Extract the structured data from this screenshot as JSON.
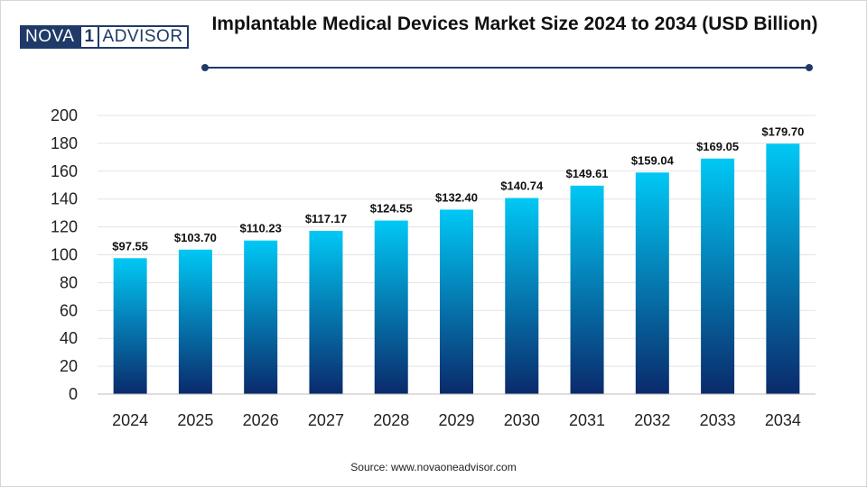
{
  "brand": {
    "logo_left": "NOVA",
    "logo_mid": "1",
    "logo_right": "ADVISOR"
  },
  "colors": {
    "bar_top": "#00c8f5",
    "bar_bottom": "#0a2a6b",
    "accent": "#1f3a68",
    "grid": "#e3e3e3"
  },
  "source": "Source: www.novaoneadvisor.com",
  "chart_data": {
    "type": "bar",
    "title": "Implantable Medical Devices Market Size 2024 to 2034 (USD Billion)",
    "xlabel": "",
    "ylabel": "",
    "categories": [
      "2024",
      "2025",
      "2026",
      "2027",
      "2028",
      "2029",
      "2030",
      "2031",
      "2032",
      "2033",
      "2034"
    ],
    "values": [
      97.55,
      103.7,
      110.23,
      117.17,
      124.55,
      132.4,
      140.74,
      149.61,
      159.04,
      169.05,
      179.7
    ],
    "data_labels": [
      "$97.55",
      "$103.70",
      "$110.23",
      "$117.17",
      "$124.55",
      "$132.40",
      "$140.74",
      "$149.61",
      "$159.04",
      "$169.05",
      "$179.70"
    ],
    "ylim": [
      0,
      200
    ],
    "yticks": [
      0,
      20,
      40,
      60,
      80,
      100,
      120,
      140,
      160,
      180,
      200
    ],
    "grid": true,
    "legend": "none"
  }
}
